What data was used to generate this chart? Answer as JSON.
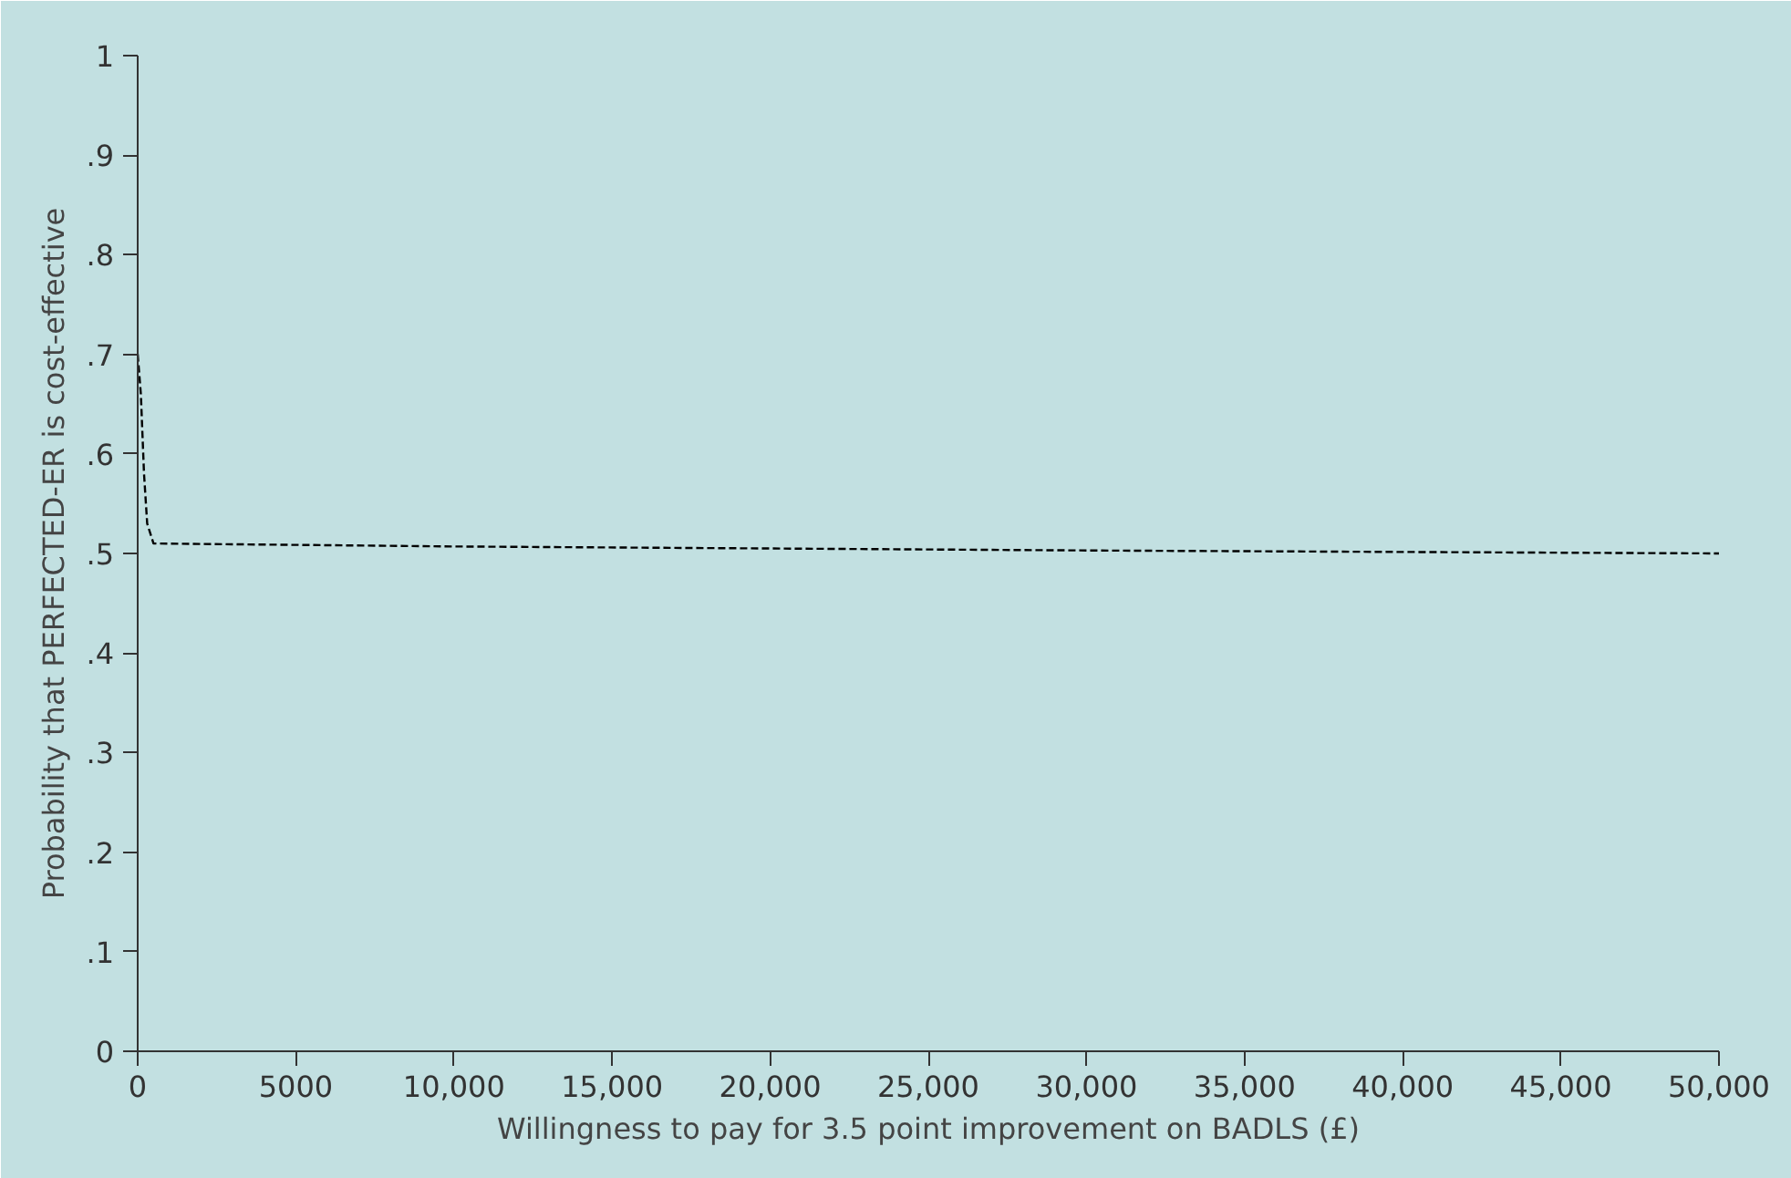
{
  "chart_data": {
    "type": "line",
    "xlabel": "Willingness to pay for 3.5 point improvement on BADLS (£)",
    "ylabel": "Probability that PERFECTED-ER is cost-effective",
    "x": [
      0,
      100,
      200,
      300,
      500,
      10000,
      30000,
      50000
    ],
    "series": [
      {
        "color": "#000000",
        "values": [
          0.7,
          0.66,
          0.58,
          0.53,
          0.51,
          0.507,
          0.503,
          0.5
        ]
      }
    ],
    "line_style": "dashed",
    "grid": false,
    "xlim": [
      0,
      50000
    ],
    "xticks": [
      0,
      5000,
      {
        "value": 10000,
        "label": "10,000"
      },
      {
        "value": 15000,
        "label": "15,000"
      },
      {
        "value": 20000,
        "label": "20,000"
      },
      {
        "value": 25000,
        "label": "25,000"
      },
      {
        "value": 30000,
        "label": "30,000"
      },
      {
        "value": 35000,
        "label": "35,000"
      },
      {
        "value": 40000,
        "label": "40,000"
      },
      {
        "value": 45000,
        "label": "45,000"
      },
      {
        "value": 50000,
        "label": "50,000"
      }
    ],
    "ylim": [
      0,
      1
    ],
    "yticks": [
      0,
      {
        "value": 0.1,
        "label": ".1"
      },
      {
        "value": 0.2,
        "label": ".2"
      },
      {
        "value": 0.3,
        "label": ".3"
      },
      {
        "value": 0.4,
        "label": ".4"
      },
      {
        "value": 0.5,
        "label": ".5"
      },
      {
        "value": 0.6,
        "label": ".6"
      },
      {
        "value": 0.7,
        "label": ".7"
      },
      {
        "value": 0.8,
        "label": ".8"
      },
      {
        "value": 0.9,
        "label": ".9"
      },
      1
    ]
  }
}
